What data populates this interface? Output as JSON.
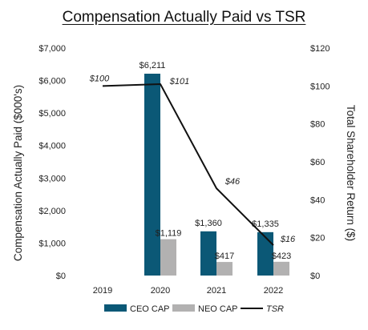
{
  "chart_data": {
    "type": "bar",
    "title": "Compensation Actually Paid vs TSR",
    "categories": [
      "2019",
      "2020",
      "2021",
      "2022"
    ],
    "series": [
      {
        "name": "CEO CAP",
        "axis": "left",
        "color": "#0b5876",
        "values": [
          null,
          6211,
          1360,
          1335
        ],
        "labels": [
          "",
          "$6,211",
          "$1,360",
          "$1,335"
        ]
      },
      {
        "name": "NEO CAP",
        "axis": "left",
        "color": "#b2b1b1",
        "values": [
          null,
          1119,
          417,
          423
        ],
        "labels": [
          "",
          "$1,119",
          "$417",
          "$423"
        ]
      },
      {
        "name": "TSR",
        "type": "line",
        "axis": "right",
        "color": "#111111",
        "values": [
          100,
          101,
          46,
          16
        ],
        "labels": [
          "$100",
          "$101",
          "$46",
          "$16"
        ]
      }
    ],
    "ylabel": "Compensation Actually Paid ($000's)",
    "ylabel_right": "Total Shareholder Return ($)",
    "ylim": [
      0,
      7000
    ],
    "ylim_right": [
      0,
      120
    ],
    "yticks": [
      "$0",
      "$1,000",
      "$2,000",
      "$3,000",
      "$4,000",
      "$5,000",
      "$6,000",
      "$7,000"
    ],
    "yticks_right": [
      "$0",
      "$20",
      "$40",
      "$60",
      "$80",
      "$100",
      "$120"
    ],
    "grid": false,
    "legend": "bottom"
  }
}
